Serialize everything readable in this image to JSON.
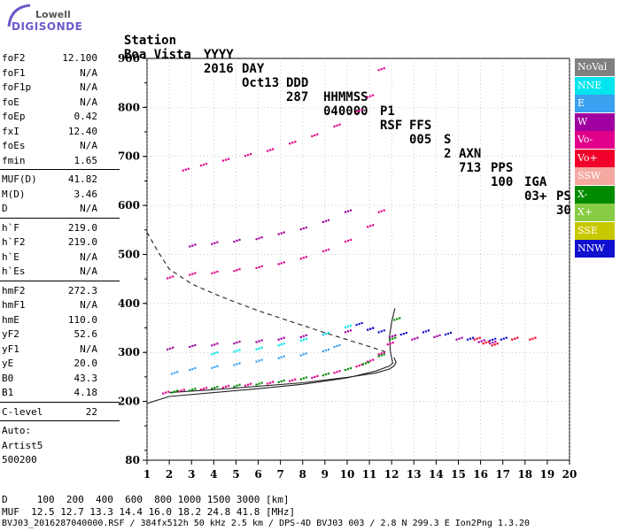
{
  "logo": {
    "line1": "Lowell",
    "line2": "DIGISONDE"
  },
  "header": {
    "labels": [
      "Station",
      "YYYY",
      "DAY",
      "DDD",
      "HHMMSS",
      "P1",
      "FFS",
      "S",
      "AXN",
      "PPS",
      "IGA",
      "PS"
    ],
    "values": [
      "Boa Vista",
      "2016",
      "Oct13",
      "287",
      "040000",
      "RSF",
      "005",
      "2",
      "713",
      "100",
      "03+",
      "30"
    ]
  },
  "params": [
    {
      "name": "foF2",
      "value": "12.100"
    },
    {
      "name": "foF1",
      "value": "N/A"
    },
    {
      "name": "foF1p",
      "value": "N/A"
    },
    {
      "name": "foE",
      "value": "N/A"
    },
    {
      "name": "foEp",
      "value": "0.42"
    },
    {
      "name": "fxI",
      "value": "12.40"
    },
    {
      "name": "foEs",
      "value": "N/A"
    },
    {
      "name": "fmin",
      "value": "1.65"
    },
    {
      "name": "MUF(D)",
      "value": "41.82"
    },
    {
      "name": "M(D)",
      "value": "3.46"
    },
    {
      "name": "D",
      "value": "N/A"
    },
    {
      "name": "h`F",
      "value": "219.0"
    },
    {
      "name": "h`F2",
      "value": "219.0"
    },
    {
      "name": "h`E",
      "value": "N/A"
    },
    {
      "name": "h`Es",
      "value": "N/A"
    },
    {
      "name": "hmF2",
      "value": "272.3"
    },
    {
      "name": "hmF1",
      "value": "N/A"
    },
    {
      "name": "hmE",
      "value": "110.0"
    },
    {
      "name": "yF2",
      "value": "52.6"
    },
    {
      "name": "yF1",
      "value": "N/A"
    },
    {
      "name": "yE",
      "value": "20.0"
    },
    {
      "name": "B0",
      "value": "43.3"
    },
    {
      "name": "B1",
      "value": "4.18"
    },
    {
      "name": "C-level",
      "value": "22"
    },
    {
      "name": "Auto:",
      "value": ""
    },
    {
      "name": "Artist5",
      "value": ""
    },
    {
      "name": "500200",
      "value": ""
    }
  ],
  "legend": [
    {
      "label": "NoVal",
      "color": "#808080"
    },
    {
      "label": "NNE",
      "color": "#00e5ee"
    },
    {
      "label": "E",
      "color": "#3aa0f0"
    },
    {
      "label": "W",
      "color": "#a000a0"
    },
    {
      "label": "Vo-",
      "color": "#e0008a"
    },
    {
      "label": "Vo+",
      "color": "#f0002a"
    },
    {
      "label": "SSW",
      "color": "#f4a8a0"
    },
    {
      "label": "X-",
      "color": "#008a00"
    },
    {
      "label": "X+",
      "color": "#88cc44"
    },
    {
      "label": "SSE",
      "color": "#c8c800"
    },
    {
      "label": "NNW",
      "color": "#1010d0"
    }
  ],
  "footer": {
    "line1": "D     100  200  400  600  800 1000 1500 3000 [km]",
    "line2": "MUF  12.5 12.7 13.3 14.4 16.0 18.2 24.8 41.8 [MHz]",
    "line3": "BVJ03_2016287040000.RSF / 384fx512h 50 kHz 2.5 km / DPS-4D BVJ03 003 / 2.8 N 299.3 E Ion2Png 1.3.20"
  },
  "chart_data": {
    "type": "scatter",
    "xlim": [
      1,
      20
    ],
    "ylim": [
      80,
      900
    ],
    "xticks": [
      1,
      2,
      3,
      4,
      5,
      6,
      7,
      8,
      9,
      10,
      11,
      12,
      13,
      14,
      15,
      16,
      17,
      18,
      19,
      20
    ],
    "yticks": [
      80,
      200,
      300,
      400,
      500,
      600,
      700,
      800,
      900
    ],
    "series": [
      {
        "name": "O trace",
        "color": "#e0008a",
        "points": [
          [
            1.8,
            220
          ],
          [
            2.5,
            224
          ],
          [
            3.5,
            228
          ],
          [
            4.5,
            232
          ],
          [
            5.5,
            236
          ],
          [
            6.5,
            240
          ],
          [
            7.5,
            245
          ],
          [
            8.5,
            252
          ],
          [
            9.5,
            262
          ],
          [
            10.5,
            275
          ],
          [
            11.0,
            285
          ],
          [
            11.5,
            300
          ],
          [
            11.9,
            320
          ]
        ]
      },
      {
        "name": "X trace",
        "color": "#008a00",
        "points": [
          [
            2.2,
            222
          ],
          [
            3.0,
            226
          ],
          [
            4.0,
            230
          ],
          [
            5.0,
            234
          ],
          [
            6.0,
            238
          ],
          [
            7.0,
            243
          ],
          [
            8.0,
            249
          ],
          [
            9.0,
            257
          ],
          [
            10.0,
            268
          ],
          [
            10.8,
            280
          ],
          [
            11.5,
            296
          ],
          [
            12.0,
            330
          ],
          [
            12.2,
            370
          ]
        ]
      },
      {
        "name": "W trace",
        "color": "#a000a0",
        "points": [
          [
            2.0,
            310
          ],
          [
            3.0,
            315
          ],
          [
            4.0,
            318
          ],
          [
            5.0,
            322
          ],
          [
            6.0,
            325
          ],
          [
            7.0,
            330
          ],
          [
            8.0,
            335
          ],
          [
            9.0,
            340
          ],
          [
            10.0,
            345
          ],
          [
            11.0,
            350
          ]
        ]
      },
      {
        "name": "E trace",
        "color": "#3aa0f0",
        "points": [
          [
            2.2,
            260
          ],
          [
            3.0,
            268
          ],
          [
            4.0,
            272
          ],
          [
            5.0,
            278
          ],
          [
            6.0,
            285
          ],
          [
            7.0,
            292
          ],
          [
            8.0,
            298
          ],
          [
            9.0,
            306
          ],
          [
            9.5,
            315
          ]
        ]
      },
      {
        "name": "NNE trace",
        "color": "#00e5ee",
        "points": [
          [
            4.0,
            300
          ],
          [
            5.0,
            305
          ],
          [
            6.0,
            310
          ],
          [
            7.0,
            318
          ],
          [
            8.0,
            328
          ],
          [
            9.0,
            340
          ],
          [
            10.0,
            355
          ]
        ]
      },
      {
        "name": "2-hop",
        "color": "#e0008a",
        "points": [
          [
            2.0,
            455
          ],
          [
            3.0,
            462
          ],
          [
            4.0,
            465
          ],
          [
            5.0,
            470
          ],
          [
            6.0,
            476
          ],
          [
            7.0,
            484
          ],
          [
            8.0,
            495
          ],
          [
            9.0,
            510
          ],
          [
            10.0,
            530
          ],
          [
            11.0,
            560
          ],
          [
            11.5,
            590
          ]
        ]
      },
      {
        "name": "2-hop W",
        "color": "#a000a0",
        "points": [
          [
            3.0,
            520
          ],
          [
            4.0,
            525
          ],
          [
            5.0,
            530
          ],
          [
            6.0,
            535
          ],
          [
            7.0,
            545
          ],
          [
            8.0,
            555
          ],
          [
            9.0,
            570
          ],
          [
            10.0,
            590
          ]
        ]
      },
      {
        "name": "3-hop",
        "color": "#e0008a",
        "points": [
          [
            2.7,
            675
          ],
          [
            3.5,
            685
          ],
          [
            4.5,
            695
          ],
          [
            5.5,
            705
          ],
          [
            6.5,
            715
          ],
          [
            7.5,
            730
          ],
          [
            8.5,
            745
          ],
          [
            9.5,
            765
          ],
          [
            10.5,
            795
          ],
          [
            11.0,
            825
          ],
          [
            11.5,
            880
          ]
        ]
      },
      {
        "name": "spread NNW",
        "color": "#1010d0",
        "points": [
          [
            10.5,
            360
          ],
          [
            11.0,
            350
          ],
          [
            11.5,
            345
          ],
          [
            12.5,
            340
          ],
          [
            13.5,
            345
          ],
          [
            14.5,
            340
          ],
          [
            15.5,
            330
          ],
          [
            16.5,
            328
          ],
          [
            17.0,
            330
          ]
        ]
      },
      {
        "name": "spread W",
        "color": "#a000a0",
        "points": [
          [
            12.0,
            335
          ],
          [
            13.0,
            330
          ],
          [
            14.0,
            335
          ],
          [
            15.0,
            330
          ],
          [
            16.0,
            325
          ],
          [
            16.5,
            322
          ]
        ]
      },
      {
        "name": "spread Vo+",
        "color": "#f0002a",
        "points": [
          [
            15.8,
            330
          ],
          [
            16.2,
            322
          ],
          [
            16.6,
            318
          ],
          [
            17.5,
            330
          ],
          [
            18.3,
            330
          ]
        ]
      }
    ],
    "lines": [
      {
        "name": "profile",
        "dash": false,
        "points": [
          [
            1,
            196
          ],
          [
            2,
            210
          ],
          [
            4,
            218
          ],
          [
            6,
            226
          ],
          [
            8,
            235
          ],
          [
            10,
            248
          ],
          [
            11.3,
            262
          ],
          [
            11.9,
            272
          ],
          [
            12.05,
            278
          ],
          [
            11.95,
            300
          ],
          [
            11.9,
            330
          ],
          [
            12.0,
            362
          ],
          [
            12.15,
            390
          ]
        ]
      },
      {
        "name": "profile inner",
        "dash": false,
        "points": [
          [
            2,
            218
          ],
          [
            4,
            224
          ],
          [
            6,
            231
          ],
          [
            8,
            238
          ],
          [
            10,
            249
          ],
          [
            11.3,
            258
          ],
          [
            11.9,
            266
          ],
          [
            12.1,
            272
          ],
          [
            12.2,
            280
          ],
          [
            12.1,
            290
          ]
        ]
      },
      {
        "name": "virtual height",
        "dash": true,
        "points": [
          [
            1,
            545
          ],
          [
            1.5,
            505
          ],
          [
            2,
            470
          ],
          [
            3,
            440
          ],
          [
            4,
            420
          ],
          [
            5,
            402
          ],
          [
            6,
            385
          ],
          [
            7,
            370
          ],
          [
            8,
            355
          ],
          [
            9,
            340
          ],
          [
            10,
            326
          ],
          [
            11,
            312
          ],
          [
            11.8,
            300
          ]
        ]
      }
    ]
  }
}
